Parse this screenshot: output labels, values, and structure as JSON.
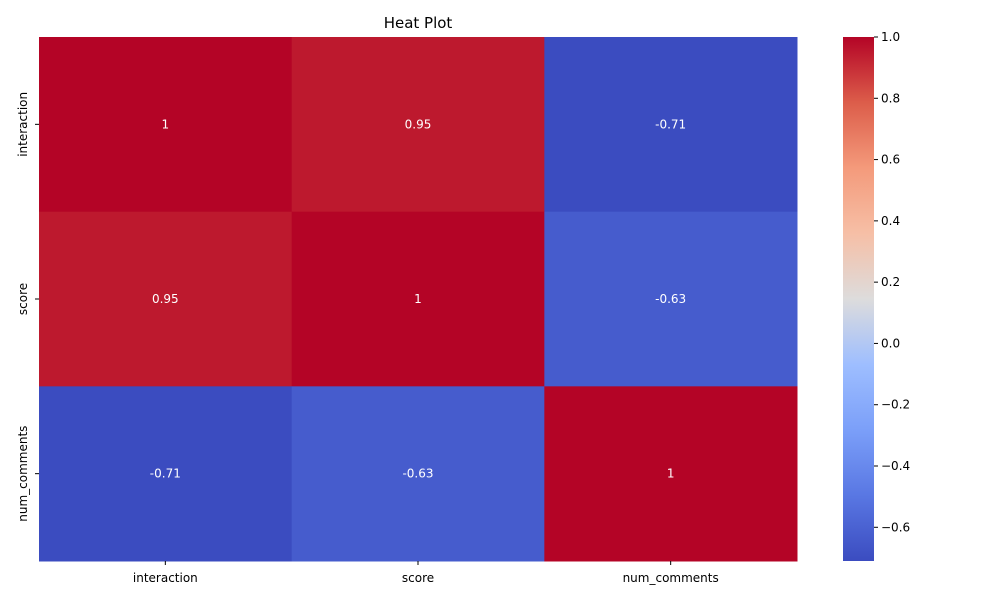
{
  "chart_data": {
    "type": "heatmap",
    "title": "Heat Plot",
    "x_categories": [
      "interaction",
      "score",
      "num_comments"
    ],
    "y_categories": [
      "interaction",
      "score",
      "num_comments"
    ],
    "values": [
      [
        1,
        0.95,
        -0.71
      ],
      [
        0.95,
        1,
        -0.63
      ],
      [
        -0.71,
        -0.63,
        1
      ]
    ],
    "annotations": [
      [
        "1",
        "0.95",
        "-0.71"
      ],
      [
        "0.95",
        "1",
        "-0.63"
      ],
      [
        "-0.71",
        "-0.63",
        "1"
      ]
    ],
    "colormap": "coolwarm",
    "colorbar": {
      "vmin": -0.71,
      "vmax": 1,
      "ticks": [
        1.0,
        0.8,
        0.6,
        0.4,
        0.2,
        0.0,
        -0.2,
        -0.4,
        -0.6
      ],
      "tick_labels": [
        "1.0",
        "0.8",
        "0.6",
        "0.4",
        "0.2",
        "0.0",
        "−0.2",
        "−0.4",
        "−0.6"
      ]
    }
  }
}
